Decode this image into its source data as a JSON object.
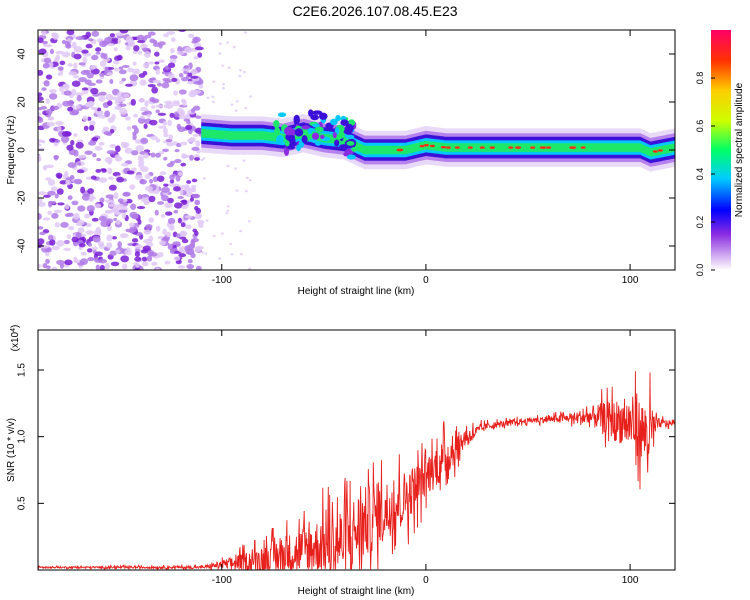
{
  "title": "C2E6.2026.107.08.45.E23",
  "chart_data": [
    {
      "type": "heatmap",
      "xlabel": "Height of straight line (km)",
      "ylabel": "Frequency (Hz)",
      "xlim": [
        -190,
        122
      ],
      "ylim": [
        -50,
        50
      ],
      "xticks": [
        -100,
        0,
        100
      ],
      "yticks": [
        -40,
        -20,
        0,
        20,
        40
      ],
      "colorbar": {
        "label": "Normalized spectral amplitude",
        "range": [
          0,
          1
        ],
        "ticks": [
          0.0,
          0.2,
          0.4,
          0.6,
          0.8
        ]
      },
      "noise_region_x": [
        -190,
        -110
      ],
      "ridge": [
        {
          "x": -110,
          "y": 7
        },
        {
          "x": -95,
          "y": 6
        },
        {
          "x": -80,
          "y": 6
        },
        {
          "x": -70,
          "y": 5
        },
        {
          "x": -60,
          "y": 7
        },
        {
          "x": -50,
          "y": 5
        },
        {
          "x": -40,
          "y": 4
        },
        {
          "x": -35,
          "y": 2
        },
        {
          "x": -30,
          "y": 0
        },
        {
          "x": -20,
          "y": 0
        },
        {
          "x": -10,
          "y": 0
        },
        {
          "x": 0,
          "y": 2
        },
        {
          "x": 10,
          "y": 1
        },
        {
          "x": 30,
          "y": 1
        },
        {
          "x": 60,
          "y": 1
        },
        {
          "x": 90,
          "y": 1
        },
        {
          "x": 105,
          "y": 1
        },
        {
          "x": 110,
          "y": -1
        },
        {
          "x": 122,
          "y": 1
        }
      ]
    },
    {
      "type": "line",
      "xlabel": "Height of straight line (km)",
      "ylabel": "SNR (10 * v/v)",
      "multiplier": "(x10^4)",
      "xlim": [
        -190,
        122
      ],
      "ylim": [
        0,
        1.8
      ],
      "xticks": [
        -100,
        0,
        100
      ],
      "yticks": [
        0.5,
        1.0,
        1.5
      ],
      "color": "#e8201c",
      "envelope": [
        {
          "x": -190,
          "base": 0.02,
          "amp": 0.01
        },
        {
          "x": -110,
          "base": 0.02,
          "amp": 0.02
        },
        {
          "x": -100,
          "base": 0.04,
          "amp": 0.06
        },
        {
          "x": -80,
          "base": 0.08,
          "amp": 0.2
        },
        {
          "x": -60,
          "base": 0.15,
          "amp": 0.35
        },
        {
          "x": -40,
          "base": 0.22,
          "amp": 0.55
        },
        {
          "x": -30,
          "base": 0.35,
          "amp": 0.55
        },
        {
          "x": -20,
          "base": 0.45,
          "amp": 0.45
        },
        {
          "x": -10,
          "base": 0.55,
          "amp": 0.4
        },
        {
          "x": 0,
          "base": 0.7,
          "amp": 0.3
        },
        {
          "x": 10,
          "base": 0.85,
          "amp": 0.3
        },
        {
          "x": 20,
          "base": 1.0,
          "amp": 0.12
        },
        {
          "x": 30,
          "base": 1.08,
          "amp": 0.05
        },
        {
          "x": 50,
          "base": 1.12,
          "amp": 0.04
        },
        {
          "x": 70,
          "base": 1.14,
          "amp": 0.06
        },
        {
          "x": 85,
          "base": 1.15,
          "amp": 0.2
        },
        {
          "x": 100,
          "base": 1.1,
          "amp": 0.4
        },
        {
          "x": 110,
          "base": 1.0,
          "amp": 0.5
        },
        {
          "x": 113,
          "base": 1.1,
          "amp": 0.08
        },
        {
          "x": 122,
          "base": 1.1,
          "amp": 0.03
        }
      ]
    }
  ]
}
